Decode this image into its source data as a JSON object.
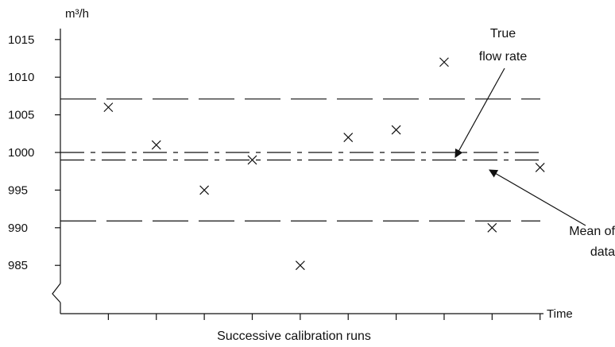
{
  "chart_data": {
    "type": "scatter",
    "y_unit_label": "m³/h",
    "x_end_label": "Time",
    "xlabel": "Successive calibration runs",
    "y_ticks": [
      {
        "value": 1015,
        "label": "1015"
      },
      {
        "value": 1010,
        "label": "1010"
      },
      {
        "value": 1005,
        "label": "1005"
      },
      {
        "value": 1000,
        "label": "1000"
      },
      {
        "value": 995,
        "label": "995"
      },
      {
        "value": 990,
        "label": "990"
      },
      {
        "value": 985,
        "label": "985"
      }
    ],
    "ylim": [
      982,
      1020
    ],
    "x_positions": [
      1,
      2,
      3,
      4,
      5,
      6,
      7,
      8,
      9,
      10
    ],
    "xlim": [
      0,
      10.8
    ],
    "points": [
      {
        "x": 1,
        "y": 1006
      },
      {
        "x": 2,
        "y": 1001
      },
      {
        "x": 3,
        "y": 995
      },
      {
        "x": 4,
        "y": 999
      },
      {
        "x": 5,
        "y": 985
      },
      {
        "x": 6,
        "y": 1002
      },
      {
        "x": 7,
        "y": 1003
      },
      {
        "x": 8,
        "y": 1012
      },
      {
        "x": 9,
        "y": 990
      },
      {
        "x": 10,
        "y": 998
      }
    ],
    "reference_lines": [
      {
        "name": "upper-limit",
        "y": 1007.1,
        "style": "long-dash"
      },
      {
        "name": "true-flow-rate",
        "y": 1000,
        "style": "dash-dot"
      },
      {
        "name": "mean-of-data",
        "y": 999.0,
        "style": "dash-dot"
      },
      {
        "name": "lower-limit",
        "y": 990.9,
        "style": "long-dash"
      }
    ],
    "annotations": {
      "true_flow_rate": [
        "True",
        "flow rate"
      ],
      "mean_of_data": [
        "Mean of",
        "data"
      ]
    },
    "axis_break": true,
    "grid": false
  }
}
